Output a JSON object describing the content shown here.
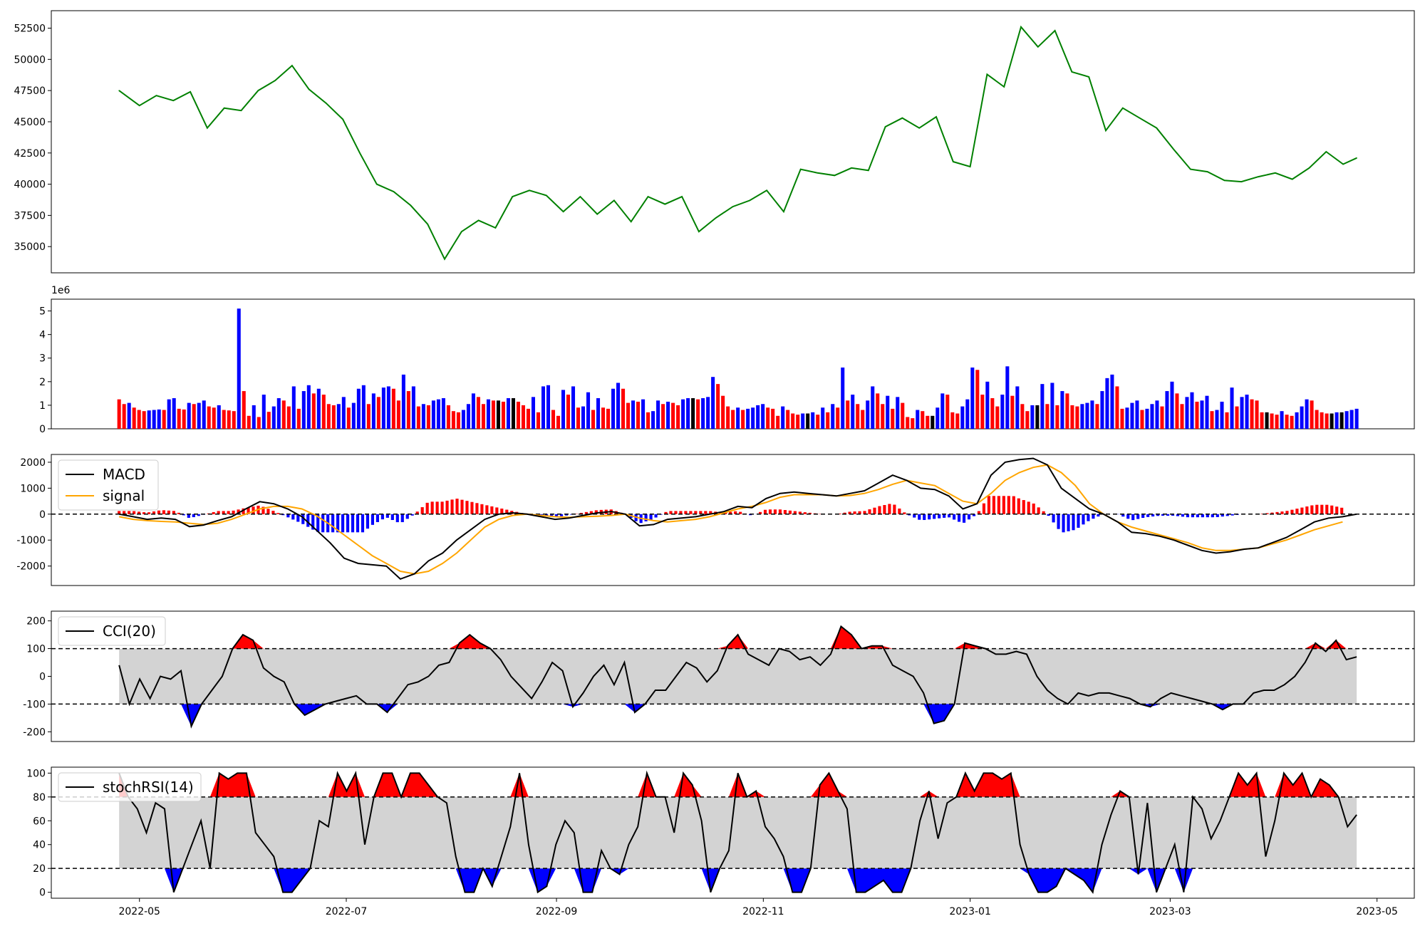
{
  "chart_data": [
    {
      "type": "line",
      "panel": "price",
      "x_dates": [
        "2022-04-25",
        "2022-05-01",
        "2022-05-06",
        "2022-05-11",
        "2022-05-16",
        "2022-05-21",
        "2022-05-26",
        "2022-05-31",
        "2022-06-05",
        "2022-06-10",
        "2022-06-15",
        "2022-06-20",
        "2022-06-25",
        "2022-06-30",
        "2022-07-05",
        "2022-07-10",
        "2022-07-15",
        "2022-07-20",
        "2022-07-25",
        "2022-07-30",
        "2022-08-04",
        "2022-08-09",
        "2022-08-14",
        "2022-08-19",
        "2022-08-24",
        "2022-08-29",
        "2022-09-03",
        "2022-09-08",
        "2022-09-13",
        "2022-09-18",
        "2022-09-23",
        "2022-09-28",
        "2022-10-03",
        "2022-10-08",
        "2022-10-13",
        "2022-10-18",
        "2022-10-23",
        "2022-10-28",
        "2022-11-02",
        "2022-11-07",
        "2022-11-12",
        "2022-11-17",
        "2022-11-22",
        "2022-11-27",
        "2022-12-02",
        "2022-12-07",
        "2022-12-12",
        "2022-12-17",
        "2022-12-22",
        "2022-12-27",
        "2023-01-01",
        "2023-01-06",
        "2023-01-11",
        "2023-01-16",
        "2023-01-21",
        "2023-01-26",
        "2023-01-31",
        "2023-02-05",
        "2023-02-10",
        "2023-02-15",
        "2023-02-20",
        "2023-02-25",
        "2023-03-02",
        "2023-03-07",
        "2023-03-12",
        "2023-03-17",
        "2023-03-22",
        "2023-03-27",
        "2023-04-01",
        "2023-04-06",
        "2023-04-11",
        "2023-04-16",
        "2023-04-21",
        "2023-04-25"
      ],
      "values": [
        47500,
        46300,
        47100,
        46700,
        47400,
        44500,
        46100,
        45900,
        47500,
        48300,
        49500,
        47600,
        46500,
        45200,
        42500,
        40000,
        39400,
        38300,
        36800,
        34000,
        36200,
        37100,
        36500,
        39000,
        39500,
        39100,
        37800,
        39000,
        37600,
        38700,
        37000,
        39000,
        38400,
        39000,
        36200,
        37300,
        38200,
        38700,
        39500,
        37800,
        41200,
        40900,
        40700,
        41300,
        41100,
        44600,
        45300,
        44500,
        45400,
        41800,
        41400,
        48800,
        47800,
        52600,
        51000,
        52300,
        49000,
        48600,
        44300,
        46100,
        45300,
        44500,
        42800,
        41200,
        41000,
        40300,
        40200,
        40600,
        40900,
        40400,
        41300,
        42600,
        41600,
        42100
      ],
      "ylim": [
        32900,
        53900
      ],
      "ytick_labels": [
        "35000",
        "37500",
        "40000",
        "42500",
        "45000",
        "47500",
        "50000",
        "52500"
      ],
      "colors": {
        "line": "#008000"
      }
    },
    {
      "type": "bar",
      "panel": "volume",
      "scale_label": "1e6",
      "values_millions": [
        1.25,
        1.05,
        1.1,
        0.9,
        0.8,
        0.75,
        0.78,
        0.8,
        0.82,
        0.8,
        1.25,
        1.3,
        0.85,
        0.82,
        1.1,
        1.05,
        1.1,
        1.2,
        0.95,
        0.9,
        1.0,
        0.8,
        0.78,
        0.75,
        5.1,
        1.6,
        0.55,
        1.0,
        0.5,
        1.45,
        0.72,
        0.95,
        1.3,
        1.2,
        0.95,
        1.8,
        0.85,
        1.6,
        1.85,
        1.5,
        1.7,
        1.45,
        1.05,
        1.0,
        1.05,
        1.35,
        0.9,
        1.1,
        1.7,
        1.85,
        1.05,
        1.5,
        1.35,
        1.75,
        1.8,
        1.7,
        1.2,
        2.3,
        1.6,
        1.8,
        0.95,
        1.05,
        1.0,
        1.2,
        1.25,
        1.3,
        1.0,
        0.75,
        0.7,
        0.8,
        1.05,
        1.5,
        1.35,
        1.05,
        1.25,
        1.2,
        1.2,
        1.15,
        1.3,
        1.3,
        1.15,
        1.0,
        0.85,
        1.35,
        0.7,
        1.8,
        1.85,
        0.8,
        0.55,
        1.65,
        1.45,
        1.8,
        0.9,
        0.95,
        1.55,
        0.8,
        1.3,
        0.9,
        0.85,
        1.7,
        1.95,
        1.7,
        1.1,
        1.2,
        1.15,
        1.25,
        0.7,
        0.75,
        1.2,
        1.05,
        1.15,
        1.1,
        1.0,
        1.25,
        1.3,
        1.3,
        1.25,
        1.3,
        1.35,
        2.2,
        1.9,
        1.4,
        0.95,
        0.8,
        0.9,
        0.8,
        0.85,
        0.9,
        1.0,
        1.05,
        0.9,
        0.85,
        0.55,
        0.95,
        0.8,
        0.65,
        0.6,
        0.65,
        0.65,
        0.7,
        0.6,
        0.9,
        0.7,
        1.05,
        0.9,
        2.6,
        1.2,
        1.45,
        1.05,
        0.8,
        1.2,
        1.8,
        1.5,
        1.05,
        1.4,
        0.85,
        1.35,
        1.1,
        0.5,
        0.45,
        0.8,
        0.75,
        0.55,
        0.55,
        0.9,
        1.5,
        1.45,
        0.7,
        0.65,
        0.95,
        1.25,
        2.6,
        2.5,
        1.45,
        2.0,
        1.3,
        0.95,
        1.45,
        2.65,
        1.4,
        1.8,
        1.05,
        0.75,
        1.0,
        1.0,
        1.9,
        1.05,
        1.95,
        1.0,
        1.6,
        1.5,
        1.0,
        0.95,
        1.05,
        1.1,
        1.2,
        1.05,
        1.6,
        2.15,
        2.3,
        1.8,
        0.85,
        0.9,
        1.1,
        1.2,
        0.8,
        0.85,
        1.05,
        1.2,
        0.95,
        1.6,
        2.0,
        1.5,
        1.05,
        1.35,
        1.55,
        1.15,
        1.2,
        1.4,
        0.75,
        0.8,
        1.15,
        0.7,
        1.75,
        0.95,
        1.35,
        1.45,
        1.25,
        1.2,
        0.7,
        0.7,
        0.65,
        0.6,
        0.75,
        0.6,
        0.55,
        0.7,
        0.95,
        1.25,
        1.2,
        0.8,
        0.7,
        0.65,
        0.65,
        0.7,
        0.7,
        0.75,
        0.8,
        0.85
      ],
      "ylim": [
        0,
        5.5
      ],
      "ytick_labels": [
        "0",
        "1",
        "2",
        "3",
        "4",
        "5"
      ],
      "colors": {
        "up": "#0000ff",
        "down": "#ff0000",
        "flat": "#000000"
      }
    },
    {
      "type": "line",
      "panel": "macd",
      "series": [
        {
          "name": "MACD",
          "values": [
            0,
            -100,
            -200,
            -150,
            -200,
            -480,
            -420,
            -250,
            -100,
            200,
            480,
            400,
            200,
            -100,
            -600,
            -1100,
            -1700,
            -1900,
            -1950,
            -2000,
            -2500,
            -2300,
            -1800,
            -1500,
            -1000,
            -600,
            -200,
            0,
            50,
            0,
            -100,
            -200,
            -150,
            -50,
            50,
            100,
            0,
            -450,
            -400,
            -200,
            -150,
            -100,
            0,
            100,
            300,
            250,
            600,
            800,
            850,
            800,
            750,
            700,
            800,
            900,
            1200,
            1500,
            1300,
            1000,
            950,
            700,
            200,
            400,
            1500,
            2000,
            2100,
            2150,
            1900,
            1000,
            600,
            200,
            0,
            -300,
            -700,
            -750,
            -850,
            -1000,
            -1200,
            -1400,
            -1500,
            -1450,
            -1350,
            -1300,
            -1100,
            -900,
            -600,
            -300,
            -150,
            -100,
            0
          ]
        },
        {
          "name": "signal",
          "values": [
            -100,
            -200,
            -250,
            -280,
            -300,
            -350,
            -400,
            -350,
            -200,
            0,
            200,
            300,
            300,
            200,
            -50,
            -400,
            -800,
            -1200,
            -1600,
            -1900,
            -2200,
            -2300,
            -2200,
            -1900,
            -1500,
            -1000,
            -500,
            -200,
            -50,
            0,
            -50,
            -100,
            -120,
            -100,
            -80,
            -50,
            0,
            -150,
            -250,
            -300,
            -250,
            -200,
            -100,
            50,
            200,
            300,
            450,
            650,
            750,
            750,
            750,
            700,
            720,
            800,
            950,
            1150,
            1300,
            1200,
            1100,
            800,
            500,
            400,
            800,
            1300,
            1600,
            1800,
            1900,
            1600,
            1100,
            400,
            0,
            -300,
            -500,
            -650,
            -800,
            -950,
            -1100,
            -1300,
            -1400,
            -1400,
            -1350,
            -1300,
            -1150,
            -1000,
            -800,
            -600,
            -450,
            -300
          ]
        }
      ],
      "histogram_range": [
        -700,
        700
      ],
      "ylim": [
        -2750,
        2300
      ],
      "ytick_labels": [
        "-2000",
        "-1000",
        "0",
        "1000",
        "2000"
      ],
      "legend_placement": "top-left",
      "colors": {
        "macd": "#000000",
        "signal": "#ffa500",
        "hist_up": "#ff0000",
        "hist_down": "#0000ff"
      }
    },
    {
      "type": "line",
      "panel": "cci",
      "series": [
        {
          "name": "CCI(20)",
          "values": [
            40,
            -100,
            -10,
            -80,
            0,
            -10,
            20,
            -180,
            -100,
            -50,
            0,
            100,
            150,
            130,
            30,
            0,
            -20,
            -100,
            -140,
            -120,
            -100,
            -90,
            -80,
            -70,
            -100,
            -100,
            -130,
            -80,
            -30,
            -20,
            0,
            40,
            50,
            120,
            150,
            120,
            100,
            60,
            0,
            -40,
            -80,
            -20,
            50,
            20,
            -110,
            -60,
            0,
            40,
            -30,
            50,
            -130,
            -100,
            -50,
            -50,
            0,
            50,
            30,
            -20,
            20,
            110,
            150,
            80,
            60,
            40,
            100,
            90,
            60,
            70,
            40,
            80,
            180,
            150,
            100,
            110,
            110,
            40,
            20,
            0,
            -60,
            -170,
            -160,
            -100,
            120,
            110,
            100,
            80,
            80,
            90,
            80,
            0,
            -50,
            -80,
            -100,
            -60,
            -70,
            -60,
            -60,
            -70,
            -80,
            -100,
            -110,
            -80,
            -60,
            -70,
            -80,
            -90,
            -100,
            -120,
            -100,
            -100,
            -60,
            -50,
            -50,
            -30,
            0,
            50,
            120,
            90,
            130,
            60,
            70
          ]
        }
      ],
      "ylim": [
        -235,
        235
      ],
      "ytick_labels": [
        "-200",
        "-100",
        "0",
        "100",
        "200"
      ],
      "bands": [
        -100,
        100
      ],
      "legend_placement": "top-left",
      "colors": {
        "line": "#000000",
        "band_fill": "#d3d3d3",
        "over": "#ff0000",
        "under": "#0000ff"
      }
    },
    {
      "type": "line",
      "panel": "stochrsi",
      "series": [
        {
          "name": "stochRSI(14)",
          "values": [
            100,
            80,
            70,
            50,
            75,
            70,
            0,
            20,
            40,
            60,
            20,
            100,
            95,
            100,
            100,
            50,
            40,
            30,
            0,
            0,
            10,
            20,
            60,
            55,
            100,
            85,
            100,
            40,
            80,
            100,
            100,
            80,
            100,
            100,
            90,
            80,
            75,
            30,
            0,
            0,
            20,
            5,
            30,
            55,
            100,
            40,
            0,
            5,
            40,
            60,
            50,
            0,
            0,
            35,
            20,
            15,
            40,
            55,
            100,
            80,
            80,
            50,
            100,
            90,
            60,
            0,
            20,
            35,
            100,
            80,
            85,
            55,
            45,
            30,
            0,
            0,
            20,
            90,
            100,
            85,
            70,
            0,
            0,
            5,
            10,
            0,
            0,
            20,
            60,
            85,
            45,
            75,
            80,
            100,
            85,
            100,
            100,
            95,
            100,
            40,
            15,
            0,
            0,
            5,
            20,
            15,
            10,
            0,
            40,
            65,
            85,
            80,
            15,
            75,
            0,
            20,
            40,
            0,
            80,
            70,
            45,
            60,
            80,
            100,
            90,
            100,
            30,
            60,
            100,
            90,
            100,
            80,
            95,
            90,
            80,
            55,
            65
          ]
        }
      ],
      "ylim": [
        -5,
        105
      ],
      "ytick_labels": [
        "0",
        "20",
        "40",
        "60",
        "80",
        "100"
      ],
      "bands": [
        20,
        80
      ],
      "legend_placement": "top-left",
      "colors": {
        "line": "#000000",
        "band_fill": "#d3d3d3",
        "over": "#ff0000",
        "under": "#0000ff"
      }
    }
  ],
  "x_axis": {
    "range": [
      "2022-04-05",
      "2023-05-12"
    ],
    "ticks": [
      {
        "date": "2022-05-01",
        "label": "2022-05"
      },
      {
        "date": "2022-07-01",
        "label": "2022-07"
      },
      {
        "date": "2022-09-01",
        "label": "2022-09"
      },
      {
        "date": "2022-11-01",
        "label": "2022-11"
      },
      {
        "date": "2023-01-01",
        "label": "2023-01"
      },
      {
        "date": "2023-03-01",
        "label": "2023-03"
      },
      {
        "date": "2023-05-01",
        "label": "2023-05"
      }
    ],
    "data_start": "2022-04-25",
    "data_end": "2023-04-25"
  }
}
